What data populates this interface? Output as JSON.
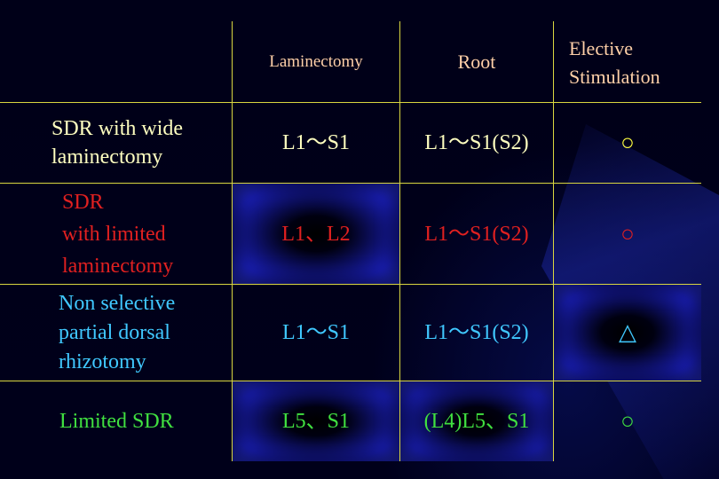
{
  "table": {
    "headers": {
      "laminectomy": "Laminectomy",
      "root": "Root",
      "elective_stimulation_line1": "Elective",
      "elective_stimulation_line2": "Stimulation"
    },
    "rows": [
      {
        "label_lines": [
          "SDR with wide",
          "laminectomy"
        ],
        "laminectomy": "L1〜S1",
        "root": "L1〜S1(S2)",
        "stimulation": "○",
        "color": "#ffff40"
      },
      {
        "label_lines": [
          "SDR",
          "with limited",
          "laminectomy"
        ],
        "laminectomy": "L1、L2",
        "root": "L1〜S1(S2)",
        "stimulation": "○",
        "color": "#e02020"
      },
      {
        "label_lines": [
          "Non selective",
          "partial dorsal",
          "rhizotomy"
        ],
        "laminectomy": "L1〜S1",
        "root": "L1〜S1(S2)",
        "stimulation": "△",
        "color": "#40c8ff"
      },
      {
        "label_lines": [
          "Limited SDR"
        ],
        "laminectomy": "L5、S1",
        "root": "(L4)L5、S1",
        "stimulation": "○",
        "color": "#40e040"
      }
    ]
  }
}
